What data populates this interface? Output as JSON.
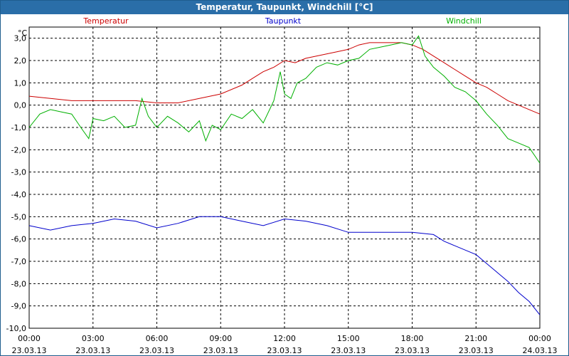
{
  "window": {
    "title": "Temperatur, Taupunkt, Windchill [°C]"
  },
  "chart_data": {
    "type": "line",
    "title": "Temperatur, Taupunkt, Windchill [°C]",
    "ylabel": "°C",
    "ylim": [
      -10,
      3.5
    ],
    "yticks": [
      3,
      2,
      1,
      0,
      -1,
      -2,
      -3,
      -4,
      -5,
      -6,
      -7,
      -8,
      -9,
      -10
    ],
    "ytick_labels": [
      "3,0",
      "2,0",
      "1,0",
      "0,0",
      "-1,0",
      "-2,0",
      "-3,0",
      "-4,0",
      "-5,0",
      "-6,0",
      "-7,0",
      "-8,0",
      "-9,0",
      "-10,0"
    ],
    "xlim": [
      0,
      24
    ],
    "xticks": [
      {
        "x": 0,
        "time": "00:00",
        "date": "23.03.13"
      },
      {
        "x": 3,
        "time": "03:00",
        "date": "23.03.13"
      },
      {
        "x": 6,
        "time": "06:00",
        "date": "23.03.13"
      },
      {
        "x": 9,
        "time": "09:00",
        "date": "23.03.13"
      },
      {
        "x": 12,
        "time": "12:00",
        "date": "23.03.13"
      },
      {
        "x": 15,
        "time": "15:00",
        "date": "23.03.13"
      },
      {
        "x": 18,
        "time": "18:00",
        "date": "23.03.13"
      },
      {
        "x": 21,
        "time": "21:00",
        "date": "23.03.13"
      },
      {
        "x": 24,
        "time": "00:00",
        "date": "24.03.13"
      }
    ],
    "grid": true,
    "series": [
      {
        "name": "Temperatur",
        "color": "#cc0000",
        "x": [
          0,
          1,
          2,
          3,
          4,
          5,
          6,
          7,
          8,
          9,
          10,
          10.5,
          11,
          11.5,
          12,
          12.5,
          13,
          13.5,
          14,
          14.5,
          15,
          15.5,
          16,
          16.5,
          17,
          17.5,
          18,
          18.5,
          19,
          19.5,
          20,
          20.5,
          21,
          21.5,
          22,
          22.5,
          23,
          23.5,
          24
        ],
        "y": [
          0.4,
          0.3,
          0.2,
          0.2,
          0.2,
          0.2,
          0.1,
          0.1,
          0.3,
          0.5,
          0.9,
          1.2,
          1.5,
          1.7,
          2.0,
          1.9,
          2.1,
          2.2,
          2.3,
          2.4,
          2.5,
          2.7,
          2.8,
          2.8,
          2.8,
          2.8,
          2.7,
          2.5,
          2.2,
          1.9,
          1.6,
          1.3,
          1.0,
          0.8,
          0.5,
          0.2,
          0.0,
          -0.2,
          -0.4
        ]
      },
      {
        "name": "Taupunkt",
        "color": "#0000cc",
        "x": [
          0,
          1,
          2,
          3,
          4,
          5,
          6,
          7,
          8,
          9,
          10,
          11,
          12,
          13,
          14,
          15,
          16,
          17,
          18,
          19,
          19.5,
          20,
          20.5,
          21,
          21.5,
          22,
          22.5,
          23,
          23.5,
          24
        ],
        "y": [
          -5.4,
          -5.6,
          -5.4,
          -5.3,
          -5.1,
          -5.2,
          -5.5,
          -5.3,
          -5.0,
          -5.0,
          -5.2,
          -5.4,
          -5.1,
          -5.2,
          -5.4,
          -5.7,
          -5.7,
          -5.7,
          -5.7,
          -5.8,
          -6.1,
          -6.3,
          -6.5,
          -6.7,
          -7.1,
          -7.5,
          -7.9,
          -8.4,
          -8.8,
          -9.4
        ]
      },
      {
        "name": "Windchill",
        "color": "#00b000",
        "x": [
          0,
          0.5,
          1,
          1.5,
          2,
          2.5,
          2.8,
          3,
          3.5,
          4,
          4.5,
          5,
          5.3,
          5.6,
          6,
          6.5,
          7,
          7.5,
          8,
          8.3,
          8.6,
          9,
          9.5,
          10,
          10.5,
          11,
          11.5,
          11.8,
          12,
          12.3,
          12.6,
          13,
          13.5,
          14,
          14.5,
          15,
          15.5,
          16,
          16.5,
          17,
          17.5,
          18,
          18.3,
          18.6,
          19,
          19.5,
          20,
          20.5,
          21,
          21.5,
          22,
          22.5,
          23,
          23.5,
          24
        ],
        "y": [
          -1.0,
          -0.4,
          -0.2,
          -0.3,
          -0.4,
          -1.1,
          -1.5,
          -0.6,
          -0.7,
          -0.5,
          -1.0,
          -0.9,
          0.3,
          -0.5,
          -1.0,
          -0.5,
          -0.8,
          -1.2,
          -0.7,
          -1.6,
          -0.9,
          -1.1,
          -0.4,
          -0.6,
          -0.2,
          -0.8,
          0.2,
          1.5,
          0.5,
          0.3,
          1.0,
          1.2,
          1.7,
          1.9,
          1.8,
          2.0,
          2.1,
          2.5,
          2.6,
          2.7,
          2.8,
          2.7,
          3.1,
          2.2,
          1.7,
          1.3,
          0.8,
          0.6,
          0.2,
          -0.4,
          -0.9,
          -1.5,
          -1.7,
          -1.9,
          -2.6
        ]
      }
    ]
  }
}
